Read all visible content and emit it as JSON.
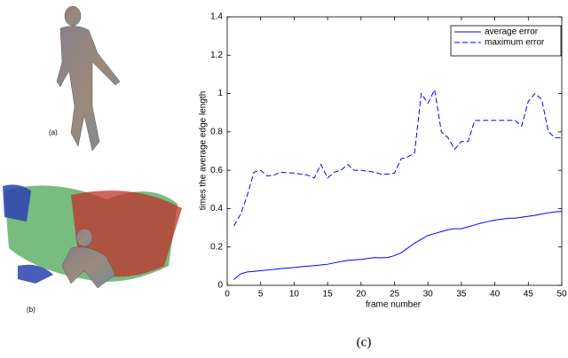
{
  "panel_labels": [
    "(a)",
    "(b)",
    "(c)"
  ],
  "chart_data": {
    "type": "line",
    "xlabel": "frame number",
    "ylabel": "times the average edge length",
    "x": [
      1,
      2,
      3,
      4,
      5,
      6,
      7,
      8,
      9,
      10,
      11,
      12,
      13,
      14,
      15,
      16,
      17,
      18,
      19,
      20,
      21,
      22,
      23,
      24,
      25,
      26,
      27,
      28,
      29,
      30,
      31,
      32,
      33,
      34,
      35,
      36,
      37,
      38,
      39,
      40,
      41,
      42,
      43,
      44,
      45,
      46,
      47,
      48,
      49,
      50
    ],
    "series": [
      {
        "name": "average error",
        "color": "#0000ff",
        "line_style": "solid",
        "values": [
          0.03,
          0.06,
          0.07,
          0.073,
          0.076,
          0.08,
          0.083,
          0.087,
          0.09,
          0.093,
          0.097,
          0.1,
          0.103,
          0.106,
          0.11,
          0.117,
          0.124,
          0.13,
          0.133,
          0.135,
          0.14,
          0.145,
          0.143,
          0.145,
          0.155,
          0.17,
          0.195,
          0.22,
          0.24,
          0.26,
          0.27,
          0.28,
          0.29,
          0.295,
          0.295,
          0.305,
          0.315,
          0.325,
          0.333,
          0.34,
          0.345,
          0.35,
          0.35,
          0.355,
          0.36,
          0.365,
          0.372,
          0.378,
          0.383,
          0.385
        ]
      },
      {
        "name": "maximum error",
        "color": "#0000ff",
        "line_style": "dashed",
        "values": [
          0.31,
          0.37,
          0.47,
          0.59,
          0.6,
          0.57,
          0.575,
          0.59,
          0.587,
          0.585,
          0.58,
          0.575,
          0.56,
          0.63,
          0.56,
          0.59,
          0.6,
          0.63,
          0.6,
          0.6,
          0.595,
          0.59,
          0.58,
          0.58,
          0.585,
          0.66,
          0.67,
          0.69,
          1.0,
          0.95,
          1.02,
          0.8,
          0.77,
          0.71,
          0.75,
          0.75,
          0.86,
          0.86,
          0.86,
          0.86,
          0.86,
          0.86,
          0.86,
          0.83,
          0.96,
          1.0,
          0.97,
          0.8,
          0.77,
          0.77
        ]
      }
    ],
    "xlim": [
      0,
      50
    ],
    "ylim": [
      0,
      1.4
    ],
    "xticks": [
      0,
      5,
      10,
      15,
      20,
      25,
      30,
      35,
      40,
      45,
      50
    ],
    "yticks": [
      0,
      0.2,
      0.4,
      0.6,
      0.8,
      1,
      1.2,
      1.4
    ],
    "legend": "upper right",
    "grid": false
  }
}
